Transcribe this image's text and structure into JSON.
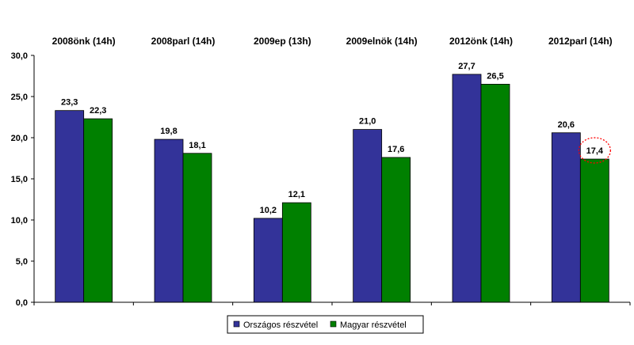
{
  "chart_data": {
    "type": "bar",
    "categories": [
      "2008önk (14h)",
      "2008parl (14h)",
      "2009ep (13h)",
      "2009elnök (14h)",
      "2012önk (14h)",
      "2012parl (14h)"
    ],
    "series": [
      {
        "name": "Országos részvétel",
        "color": "#333399",
        "values": [
          23.3,
          19.8,
          10.2,
          21.0,
          27.7,
          20.6
        ]
      },
      {
        "name": "Magyar részvétel",
        "color": "#008000",
        "values": [
          22.3,
          18.1,
          12.1,
          17.6,
          26.5,
          17.4
        ]
      }
    ],
    "data_labels": [
      [
        "23,3",
        "19,8",
        "10,2",
        "21,0",
        "27,7",
        "20,6"
      ],
      [
        "22,3",
        "18,1",
        "12,1",
        "17,6",
        "26,5",
        "17,4"
      ]
    ],
    "ylim": [
      0,
      30
    ],
    "y_ticks": [
      0,
      5,
      10,
      15,
      20,
      25,
      30
    ],
    "y_tick_labels": [
      "0,0",
      "5,0",
      "10,0",
      "15,0",
      "20,0",
      "25,0",
      "30,0"
    ],
    "category_labels_position": "top",
    "legend": "bottom-center",
    "grid": false,
    "highlight": {
      "series": 1,
      "category": 5,
      "style": "dotted red circle",
      "color": "#ff0000"
    }
  }
}
